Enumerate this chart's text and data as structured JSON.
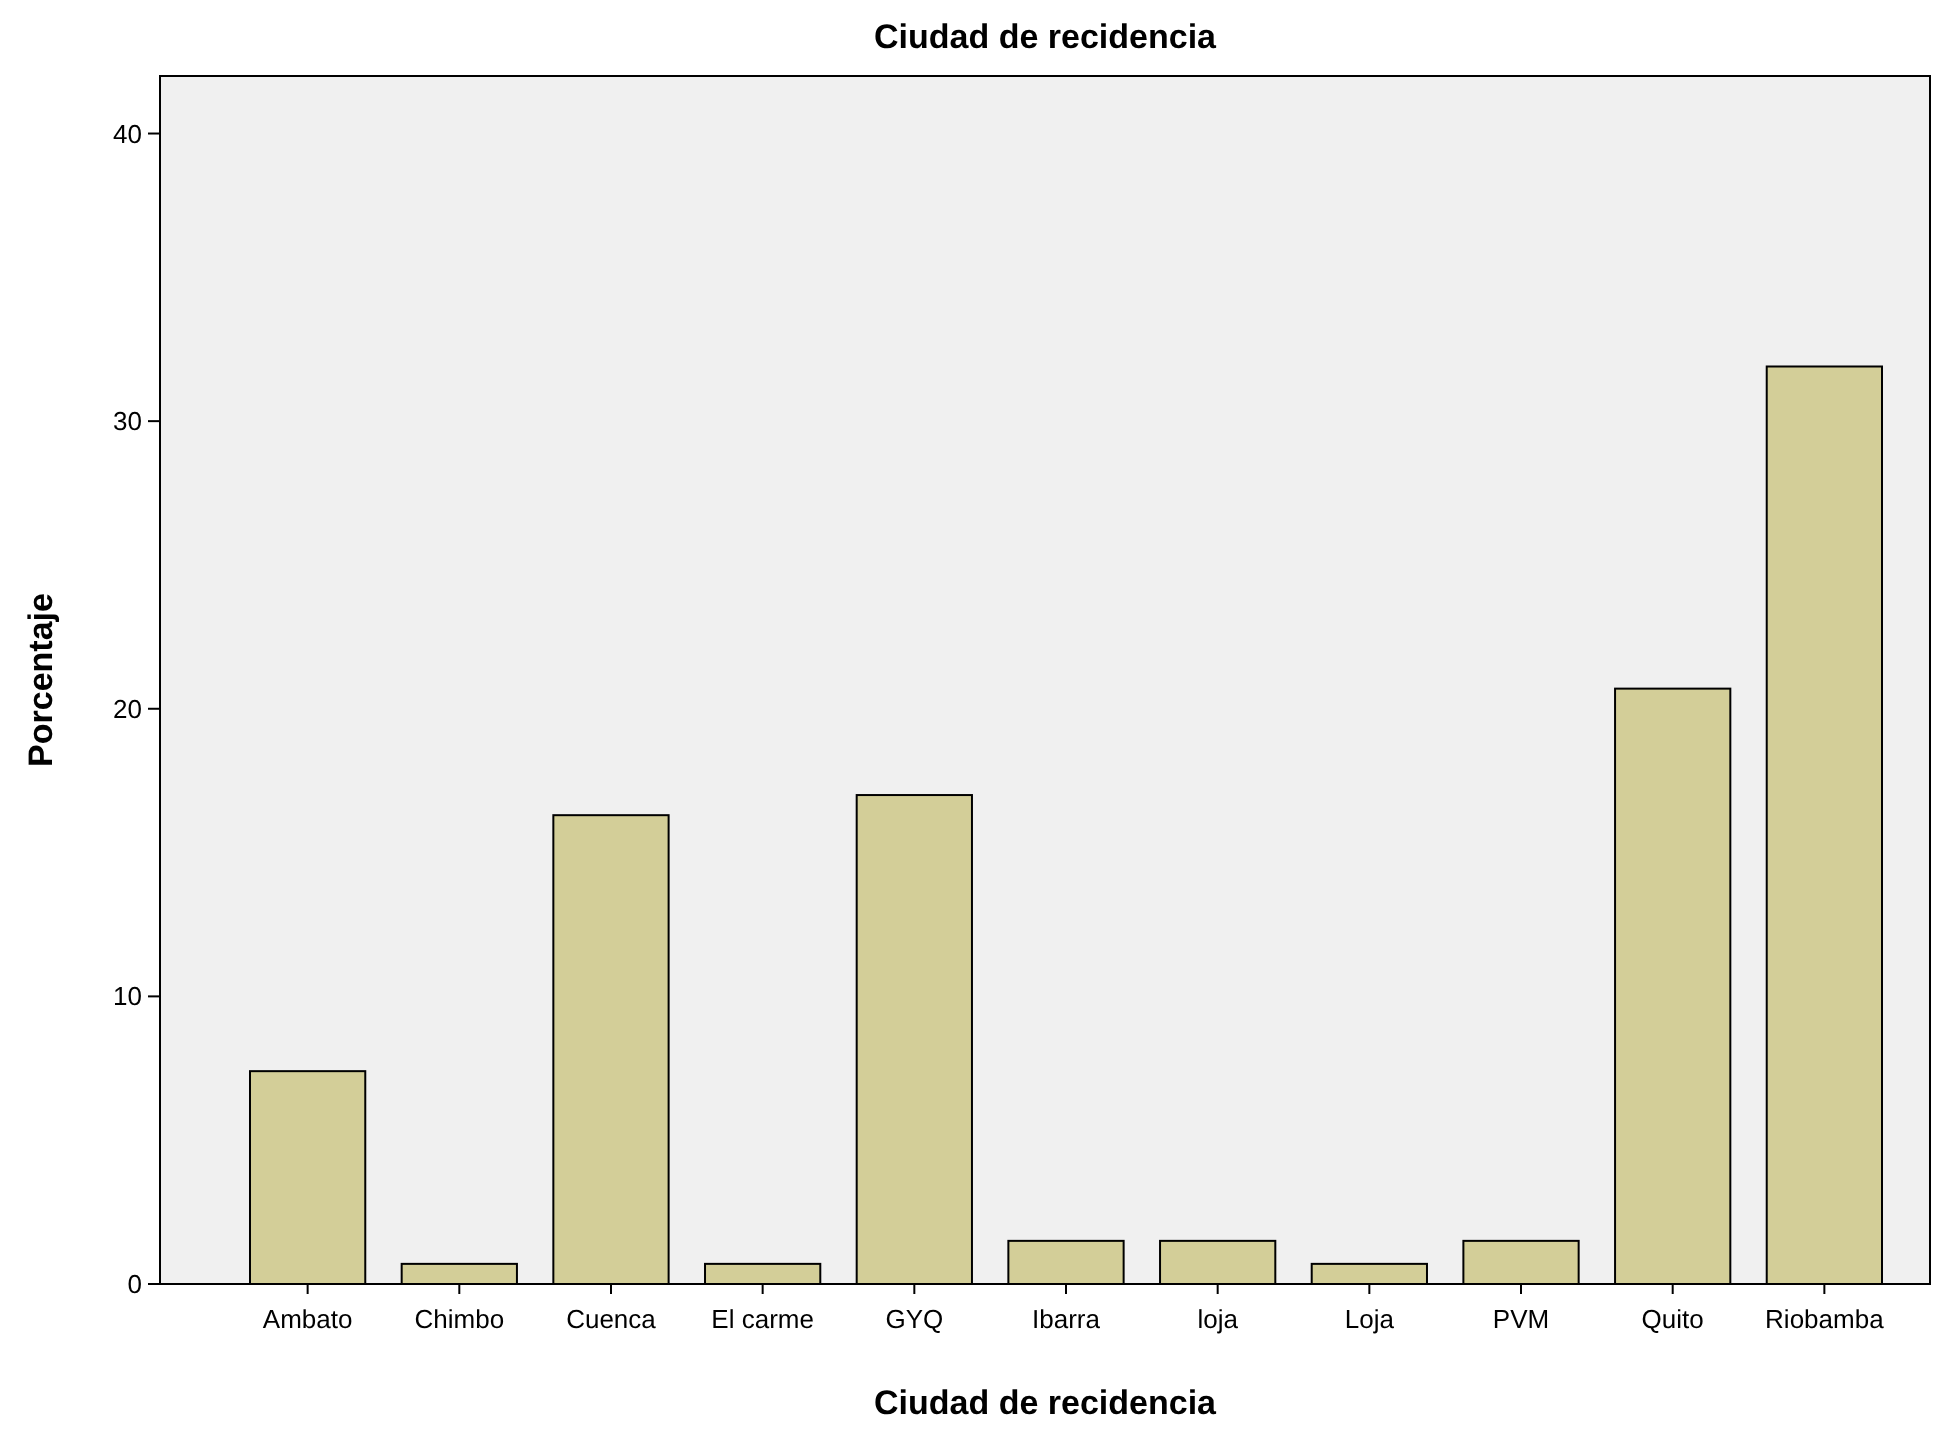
{
  "chart_data": {
    "type": "bar",
    "title": "Ciudad de recidencia",
    "xlabel": "Ciudad de recidencia",
    "ylabel": "Porcentaje",
    "categories": [
      "Ambato",
      "Chimbo",
      "Cuenca",
      "El carme",
      "GYQ",
      "Ibarra",
      "loja",
      "Loja",
      "PVM",
      "Quito",
      "Riobamba"
    ],
    "values": [
      7.4,
      0.7,
      16.3,
      0.7,
      17.0,
      1.5,
      1.5,
      0.7,
      1.5,
      20.7,
      31.9
    ],
    "color": "#d3ce98",
    "ylim": [
      0,
      42
    ],
    "yticks": [
      0,
      10,
      20,
      30,
      40
    ],
    "grid": false
  }
}
